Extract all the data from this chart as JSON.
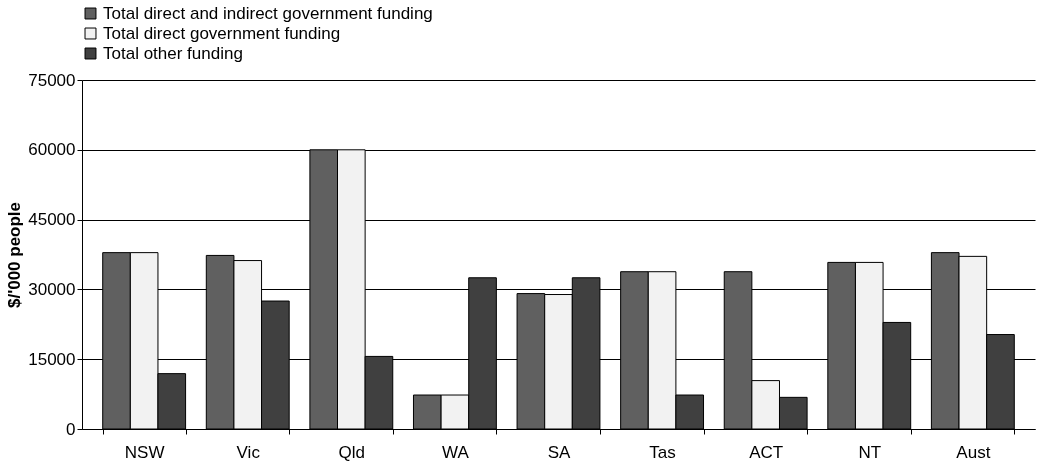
{
  "chart_data": {
    "type": "bar",
    "ylabel": "$/'000 people",
    "categories": [
      "NSW",
      "Vic",
      "Qld",
      "WA",
      "SA",
      "Tas",
      "ACT",
      "NT",
      "Aust"
    ],
    "series": [
      {
        "name": "Total direct and indirect government funding",
        "color": "#606060",
        "values": [
          37900,
          37300,
          60000,
          7300,
          29100,
          33800,
          33800,
          35800,
          37900
        ]
      },
      {
        "name": "Total direct government funding",
        "color": "#f2f2f2",
        "values": [
          37900,
          36200,
          60000,
          7300,
          28900,
          33800,
          10400,
          35800,
          37100
        ]
      },
      {
        "name": "Total other funding",
        "color": "#404040",
        "values": [
          11900,
          27500,
          15600,
          32500,
          32500,
          7300,
          6800,
          22900,
          20300
        ]
      }
    ],
    "ylim": [
      0,
      75000
    ],
    "yticks": [
      0,
      15000,
      30000,
      45000,
      60000,
      75000
    ],
    "grid": "y",
    "legend": "top"
  }
}
